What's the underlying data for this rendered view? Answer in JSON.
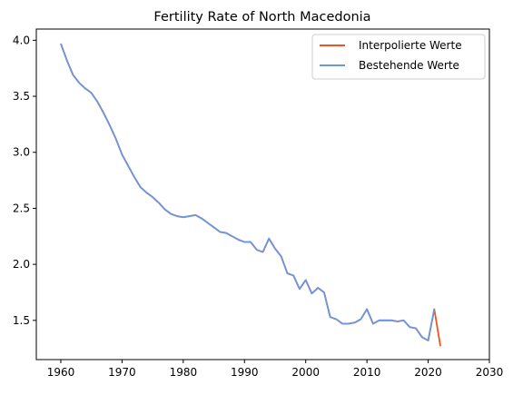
{
  "chart_data": {
    "type": "line",
    "title": "Fertility Rate of North Macedonia",
    "xlabel": "",
    "ylabel": "",
    "xlim": [
      1956,
      2030
    ],
    "ylim": [
      1.15,
      4.1
    ],
    "xticks": [
      1960,
      1970,
      1980,
      1990,
      2000,
      2010,
      2020,
      2030
    ],
    "xtick_labels": [
      "1960",
      "1970",
      "1980",
      "1990",
      "2000",
      "2010",
      "2020",
      "2030"
    ],
    "yticks": [
      1.5,
      2.0,
      2.5,
      3.0,
      3.5,
      4.0
    ],
    "ytick_labels": [
      "1.5",
      "2.0",
      "2.5",
      "3.0",
      "3.5",
      "4.0"
    ],
    "grid": false,
    "legend_position": "top-right",
    "series": [
      {
        "name": "Interpolierte Werte",
        "color": "#f4511e",
        "x": [
          1960,
          1961,
          1962,
          1963,
          1964,
          1965,
          1966,
          1967,
          1968,
          1969,
          1970,
          1971,
          1972,
          1973,
          1974,
          1975,
          1976,
          1977,
          1978,
          1979,
          1980,
          1981,
          1982,
          1983,
          1984,
          1985,
          1986,
          1987,
          1988,
          1989,
          1990,
          1991,
          1992,
          1993,
          1994,
          1995,
          1996,
          1997,
          1998,
          1999,
          2000,
          2001,
          2002,
          2003,
          2004,
          2005,
          2006,
          2007,
          2008,
          2009,
          2010,
          2011,
          2012,
          2013,
          2014,
          2015,
          2016,
          2017,
          2018,
          2019,
          2020,
          2021,
          2022
        ],
        "y": [
          3.97,
          3.82,
          3.69,
          3.62,
          3.57,
          3.53,
          3.45,
          3.35,
          3.24,
          3.12,
          2.98,
          2.88,
          2.78,
          2.69,
          2.64,
          2.6,
          2.55,
          2.49,
          2.45,
          2.43,
          2.42,
          2.43,
          2.44,
          2.41,
          2.37,
          2.33,
          2.29,
          2.28,
          2.25,
          2.22,
          2.2,
          2.2,
          2.13,
          2.11,
          2.23,
          2.14,
          2.07,
          1.92,
          1.9,
          1.78,
          1.86,
          1.74,
          1.79,
          1.75,
          1.53,
          1.51,
          1.47,
          1.47,
          1.48,
          1.51,
          1.6,
          1.47,
          1.5,
          1.5,
          1.5,
          1.49,
          1.5,
          1.44,
          1.43,
          1.35,
          1.32,
          1.6,
          1.27
        ]
      },
      {
        "name": "Bestehende Werte",
        "color": "#6b96e0",
        "x": [
          1960,
          1961,
          1962,
          1963,
          1964,
          1965,
          1966,
          1967,
          1968,
          1969,
          1970,
          1971,
          1972,
          1973,
          1974,
          1975,
          1976,
          1977,
          1978,
          1979,
          1980,
          1981,
          1982,
          1983,
          1984,
          1985,
          1986,
          1987,
          1988,
          1989,
          1990,
          1991,
          1992,
          1993,
          1994,
          1995,
          1996,
          1997,
          1998,
          1999,
          2000,
          2001,
          2002,
          2003,
          2004,
          2005,
          2006,
          2007,
          2008,
          2009,
          2010,
          2011,
          2012,
          2013,
          2014,
          2015,
          2016,
          2017,
          2018,
          2019,
          2020,
          2021
        ],
        "y": [
          3.97,
          3.82,
          3.69,
          3.62,
          3.57,
          3.53,
          3.45,
          3.35,
          3.24,
          3.12,
          2.98,
          2.88,
          2.78,
          2.69,
          2.64,
          2.6,
          2.55,
          2.49,
          2.45,
          2.43,
          2.42,
          2.43,
          2.44,
          2.41,
          2.37,
          2.33,
          2.29,
          2.28,
          2.25,
          2.22,
          2.2,
          2.2,
          2.13,
          2.11,
          2.23,
          2.14,
          2.07,
          1.92,
          1.9,
          1.78,
          1.86,
          1.74,
          1.79,
          1.75,
          1.53,
          1.51,
          1.47,
          1.47,
          1.48,
          1.51,
          1.6,
          1.47,
          1.5,
          1.5,
          1.5,
          1.49,
          1.5,
          1.44,
          1.43,
          1.35,
          1.32,
          1.6
        ]
      }
    ]
  }
}
